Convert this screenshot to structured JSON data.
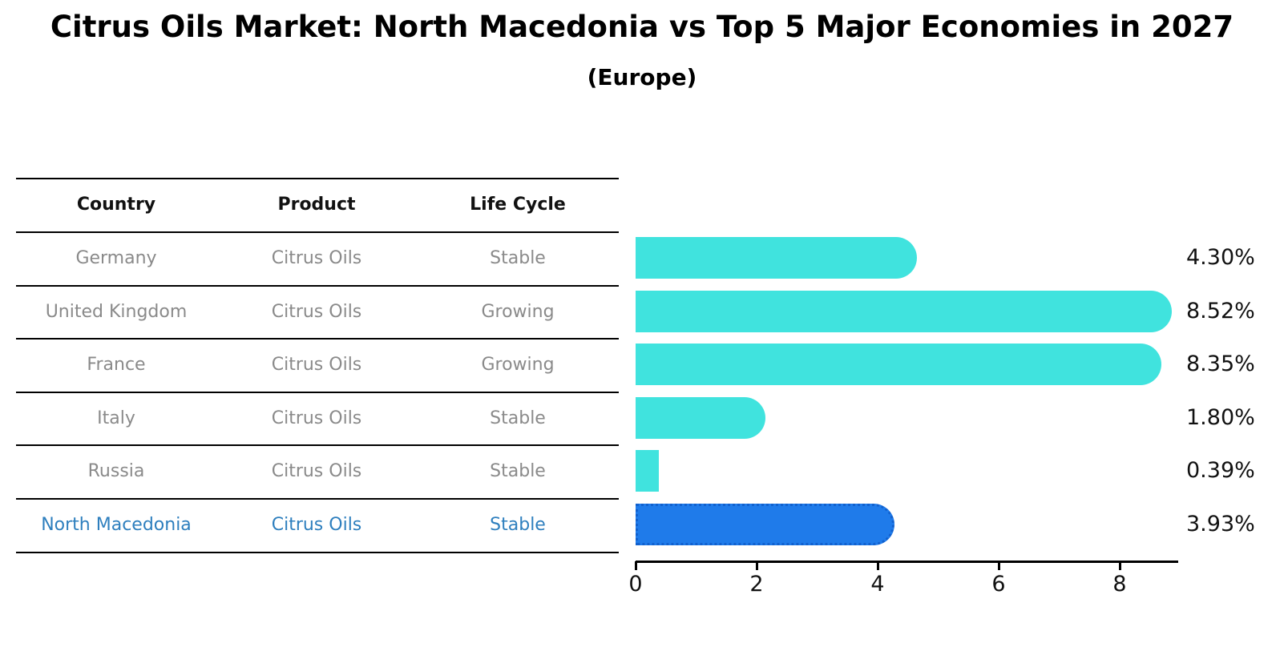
{
  "title": "Citrus Oils Market: North Macedonia vs Top 5 Major Economies in 2027",
  "subtitle": "(Europe)",
  "table": {
    "headers": [
      "Country",
      "Product",
      "Life Cycle"
    ],
    "rows": [
      {
        "country": "Germany",
        "product": "Citrus Oils",
        "life_cycle": "Stable",
        "highlight": false
      },
      {
        "country": "United Kingdom",
        "product": "Citrus Oils",
        "life_cycle": "Growing",
        "highlight": false
      },
      {
        "country": "France",
        "product": "Citrus Oils",
        "life_cycle": "Growing",
        "highlight": false
      },
      {
        "country": "Italy",
        "product": "Citrus Oils",
        "life_cycle": "Stable",
        "highlight": false
      },
      {
        "country": "Russia",
        "product": "Citrus Oils",
        "life_cycle": "Stable",
        "highlight": false
      },
      {
        "country": "North Macedonia",
        "product": "Citrus Oils",
        "life_cycle": "Stable",
        "highlight": true
      }
    ]
  },
  "chart_data": {
    "type": "bar",
    "orientation": "horizontal",
    "title": "Citrus Oils Market: North Macedonia vs Top 5 Major Economies in 2027 (Europe)",
    "categories": [
      "Germany",
      "United Kingdom",
      "France",
      "Italy",
      "Russia",
      "North Macedonia"
    ],
    "values": [
      4.3,
      8.52,
      8.35,
      1.8,
      0.39,
      3.93
    ],
    "value_labels": [
      "4.30%",
      "8.52%",
      "8.35%",
      "1.80%",
      "0.39%",
      "3.93%"
    ],
    "x_tick_values": [
      0,
      2,
      4,
      6,
      8
    ],
    "x_tick_labels": [
      "0",
      "2",
      "4",
      "6",
      "8"
    ],
    "xlim": [
      0,
      8.95
    ],
    "grid": false,
    "legend": false,
    "bar_color": "#40e3de",
    "highlight_index": 5,
    "highlight_bar_color": "#1f7bea",
    "highlight_border_color": "#1261ce"
  }
}
